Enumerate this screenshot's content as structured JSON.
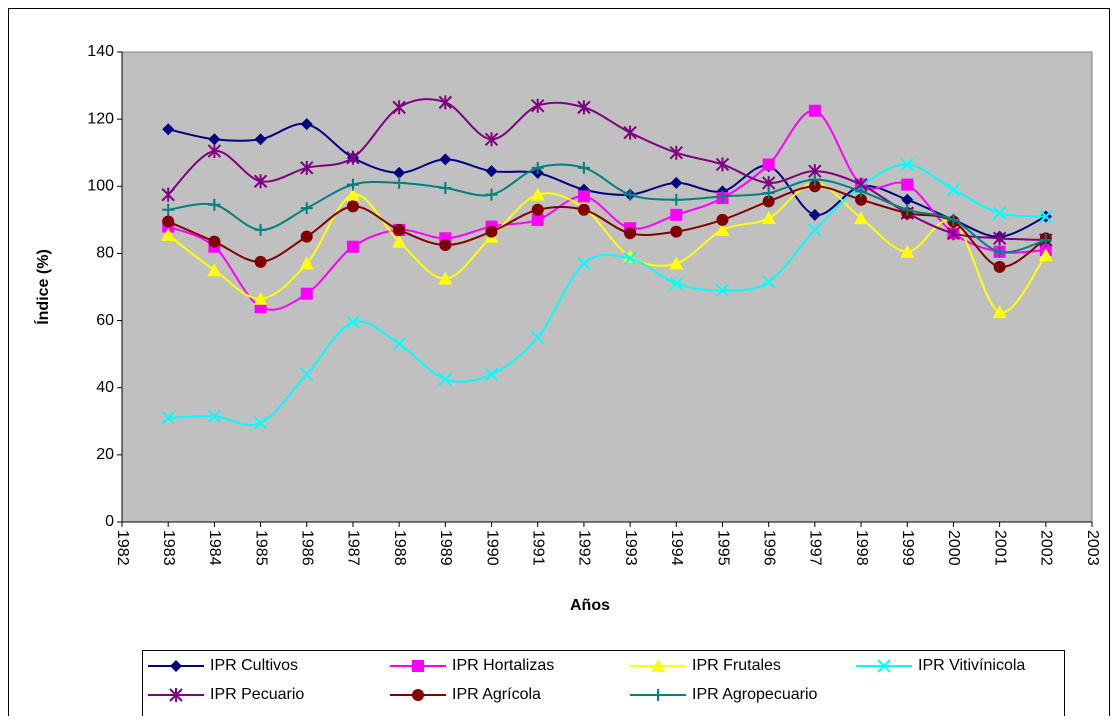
{
  "chart_data": {
    "type": "line",
    "x_label": "Años",
    "y_label": "Índice (%)",
    "x": [
      1983,
      1984,
      1985,
      1986,
      1987,
      1988,
      1989,
      1990,
      1991,
      1992,
      1993,
      1994,
      1995,
      1996,
      1997,
      1998,
      1999,
      2000,
      2001,
      2002
    ],
    "xlim": [
      1982,
      2003
    ],
    "xticks": [
      1982,
      1983,
      1984,
      1985,
      1986,
      1987,
      1988,
      1989,
      1990,
      1991,
      1992,
      1993,
      1994,
      1995,
      1996,
      1997,
      1998,
      1999,
      2000,
      2001,
      2002,
      2003
    ],
    "ylim": [
      0,
      140
    ],
    "yticks": [
      0,
      20,
      40,
      60,
      80,
      100,
      120,
      140
    ],
    "grid": false,
    "smooth": true,
    "legend": "bottom",
    "series": [
      {
        "name": "IPR Cultivos",
        "color": "#000080",
        "marker": "diamond",
        "values": [
          117,
          114,
          114,
          118.5,
          108.5,
          104,
          108,
          104.5,
          104,
          99,
          97.5,
          101,
          98.5,
          106,
          91.5,
          100,
          96,
          90,
          85,
          91
        ]
      },
      {
        "name": "IPR Hortalizas",
        "color": "#FF00FF",
        "marker": "square",
        "values": [
          88,
          82,
          64,
          68,
          82,
          87,
          84.5,
          88,
          90,
          97,
          87.5,
          91.5,
          96.5,
          106.5,
          122.5,
          100.5,
          100.5,
          86,
          80.5,
          81
        ]
      },
      {
        "name": "IPR Frutales",
        "color": "#FFFF00",
        "marker": "triangle",
        "values": [
          85.5,
          75,
          66.5,
          77,
          97.5,
          83.5,
          72.5,
          85,
          97.5,
          93.5,
          79,
          77,
          87,
          90.5,
          101,
          90.5,
          80.5,
          89.5,
          62.5,
          79.5
        ]
      },
      {
        "name": "IPR Vitivínicola",
        "color": "#00FFFF",
        "marker": "x",
        "values": [
          31,
          31.5,
          29.5,
          44,
          59.5,
          53,
          42.5,
          44,
          55,
          77,
          78.5,
          71,
          69,
          71.5,
          87,
          100,
          106.5,
          99,
          92,
          91
        ]
      },
      {
        "name": "IPR Pecuario",
        "color": "#800080",
        "marker": "star",
        "values": [
          97.5,
          110.5,
          101.5,
          105.5,
          108.5,
          123.5,
          125,
          114,
          124,
          123.5,
          116,
          110,
          106.5,
          101,
          104.5,
          100.5,
          92,
          86,
          84.5,
          84
        ]
      },
      {
        "name": "IPR Agrícola",
        "color": "#800000",
        "marker": "circle",
        "values": [
          89.5,
          83.5,
          77.5,
          85,
          94,
          87,
          82.5,
          86.5,
          93,
          93,
          86,
          86.5,
          90,
          95.5,
          100,
          96,
          92,
          89.5,
          76,
          84.5
        ]
      },
      {
        "name": "IPR Agropecuario",
        "color": "#008080",
        "marker": "plus",
        "values": [
          93,
          94.5,
          87,
          93.5,
          100.5,
          101,
          99.5,
          97.5,
          105.5,
          105.5,
          97.5,
          96,
          97,
          98,
          102,
          98.5,
          93,
          90,
          80.5,
          84
        ]
      }
    ]
  }
}
